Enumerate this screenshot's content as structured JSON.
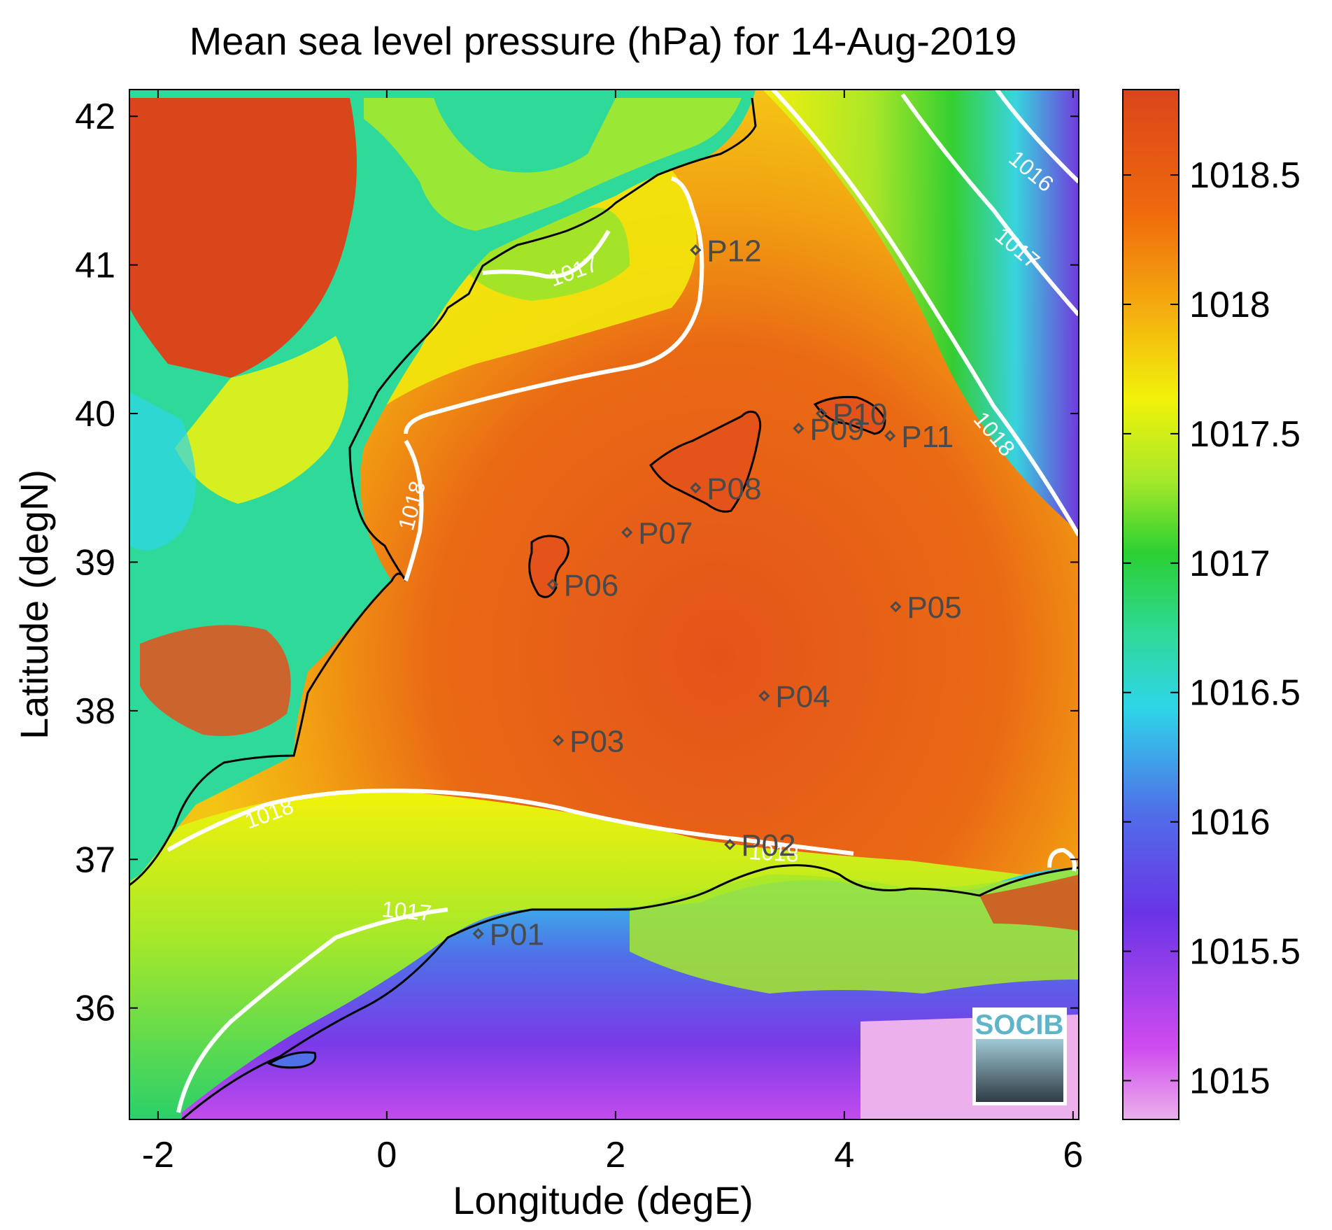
{
  "title": "Mean sea level pressure (hPa) for 14-Aug-2019",
  "xlabel": "Longitude (degE)",
  "ylabel": "Latitude (degN)",
  "x_ticks": [
    "-2",
    "0",
    "2",
    "4",
    "6"
  ],
  "y_ticks": [
    "36",
    "37",
    "38",
    "39",
    "40",
    "41",
    "42"
  ],
  "colorbar": {
    "ticks": [
      "1015",
      "1015.5",
      "1016",
      "1016.5",
      "1017",
      "1017.5",
      "1018",
      "1018.5"
    ],
    "range": [
      1014.85,
      1018.83
    ],
    "colors": [
      "#ecb0ec",
      "#cf4bef",
      "#6a34e6",
      "#4f70e8",
      "#2ed6e8",
      "#2fd99a",
      "#2bd033",
      "#a6e82a",
      "#f2f20a",
      "#f4b20f",
      "#f06a0c",
      "#d9451c"
    ]
  },
  "map": {
    "lon_range": [
      -2.25,
      6.05
    ],
    "lat_range": [
      35.25,
      42.18
    ],
    "sea_high_color": "#e4541a",
    "land_high_color": "#d9461b",
    "points": [
      {
        "name": "P01",
        "lon": 0.8,
        "lat": 36.5
      },
      {
        "name": "P02",
        "lon": 3.0,
        "lat": 37.1
      },
      {
        "name": "P03",
        "lon": 1.5,
        "lat": 37.8
      },
      {
        "name": "P04",
        "lon": 3.3,
        "lat": 38.1
      },
      {
        "name": "P05",
        "lon": 4.45,
        "lat": 38.7
      },
      {
        "name": "P06",
        "lon": 1.45,
        "lat": 38.85
      },
      {
        "name": "P07",
        "lon": 2.1,
        "lat": 39.2
      },
      {
        "name": "P08",
        "lon": 2.7,
        "lat": 39.5
      },
      {
        "name": "P09",
        "lon": 3.6,
        "lat": 39.9
      },
      {
        "name": "P10",
        "lon": 3.8,
        "lat": 40.0
      },
      {
        "name": "P11",
        "lon": 4.4,
        "lat": 39.85
      },
      {
        "name": "P12",
        "lon": 2.7,
        "lat": 41.1
      }
    ],
    "contour_labels": [
      "1016",
      "1017",
      "1017",
      "1017",
      "1018",
      "1018",
      "1018",
      "1018"
    ],
    "logo_text": "SOCIB"
  }
}
